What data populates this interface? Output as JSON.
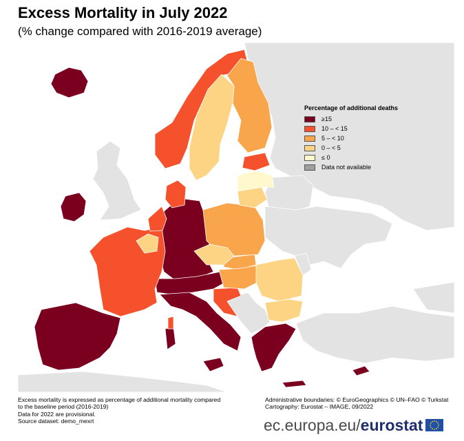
{
  "header": {
    "title": "Excess Mortality in July 2022",
    "subtitle": "(% change compared with 2016-2019 average)"
  },
  "legend": {
    "title": "Percentage of additional deaths",
    "items": [
      {
        "label": "≥15",
        "color": "#7b0020"
      },
      {
        "label": "10 – < 15",
        "color": "#f4512c"
      },
      {
        "label": "5 – < 10",
        "color": "#f9a54b"
      },
      {
        "label": "0 – < 5",
        "color": "#fcd483"
      },
      {
        "label": "≤ 0",
        "color": "#fff8cc"
      },
      {
        "label": "Data not available",
        "color": "#a0a0a0"
      }
    ]
  },
  "colors": {
    "non_eu": "#e3e3e3",
    "sea": "#ffffff",
    "border": "#ffffff"
  },
  "map": {
    "regions": [
      {
        "name": "Iceland",
        "class": "≥15"
      },
      {
        "name": "Ireland",
        "class": "≥15"
      },
      {
        "name": "Spain",
        "class": "≥15"
      },
      {
        "name": "Portugal",
        "class": "≥15"
      },
      {
        "name": "Germany",
        "class": "≥15"
      },
      {
        "name": "Austria",
        "class": "≥15"
      },
      {
        "name": "Switzerland",
        "class": "≥15"
      },
      {
        "name": "Liechtenstein",
        "class": "≥15"
      },
      {
        "name": "Slovenia",
        "class": "≥15"
      },
      {
        "name": "Italy",
        "class": "≥15"
      },
      {
        "name": "Greece",
        "class": "≥15"
      },
      {
        "name": "Cyprus",
        "class": "≥15"
      },
      {
        "name": "Malta",
        "class": "≥15"
      },
      {
        "name": "France",
        "class": "10 – < 15"
      },
      {
        "name": "Netherlands",
        "class": "10 – < 15"
      },
      {
        "name": "Denmark",
        "class": "10 – < 15"
      },
      {
        "name": "Norway",
        "class": "10 – < 15"
      },
      {
        "name": "Estonia",
        "class": "10 – < 15"
      },
      {
        "name": "Croatia",
        "class": "10 – < 15"
      },
      {
        "name": "Poland",
        "class": "5 – < 10"
      },
      {
        "name": "Finland",
        "class": "5 – < 10"
      },
      {
        "name": "Hungary",
        "class": "5 – < 10"
      },
      {
        "name": "Slovakia",
        "class": "5 – < 10"
      },
      {
        "name": "Sweden",
        "class": "0 – < 5"
      },
      {
        "name": "Belgium",
        "class": "0 – < 5"
      },
      {
        "name": "Luxembourg",
        "class": "0 – < 5"
      },
      {
        "name": "Czechia",
        "class": "0 – < 5"
      },
      {
        "name": "Romania",
        "class": "0 – < 5"
      },
      {
        "name": "Bulgaria",
        "class": "0 – < 5"
      },
      {
        "name": "Lithuania",
        "class": "0 – < 5"
      },
      {
        "name": "Latvia",
        "class": "≤ 0"
      }
    ]
  },
  "footer": {
    "notes": [
      "Excess mortality is expressed as percentage of additional mortality compared",
      "to the baseline period (2016-2019)",
      "Data for 2022 are provisional.",
      "Source dataset: demo_mexrt"
    ],
    "credits": [
      "Administrative boundaries: © EuroGeographics © UN–FAO © Turkstat",
      "Cartography: Eurostat – IMAGE, 09/2022"
    ],
    "brand_url": "ec.europa.eu/",
    "brand_name": "eurostat"
  }
}
